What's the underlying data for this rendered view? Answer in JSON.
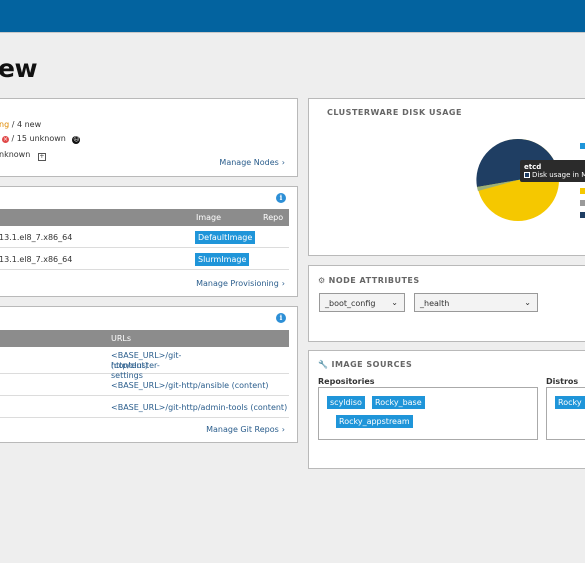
{
  "page": {
    "title": "ew"
  },
  "nodes_card": {
    "line1_warn": "ng",
    "line1_rest": " / 4 new",
    "line2_rest": " / 15 unknown",
    "line3_rest": "nknown",
    "manage_link": "Manage Nodes"
  },
  "provisioning": {
    "headers": {
      "image": "Image",
      "repo": "Repo"
    },
    "rows": [
      {
        "name": "13.1.el8_7.x86_64",
        "image": "DefaultImage"
      },
      {
        "name": "13.1.el8_7.x86_64",
        "image": "SlurmImage"
      }
    ],
    "manage_link": "Manage Provisioning"
  },
  "git_repos": {
    "headers": {
      "urls": "URLs"
    },
    "rows": [
      {
        "url_line1": "<BASE_URL>/git-http/cluster-settings",
        "url_line2": "(content)"
      },
      {
        "url_line1": "<BASE_URL>/git-http/ansible (content)",
        "url_line2": ""
      },
      {
        "url_line1": "<BASE_URL>/git-http/admin-tools (content)",
        "url_line2": ""
      }
    ],
    "manage_link": "Manage Git Repos"
  },
  "disk_usage": {
    "heading": "CLUSTERWARE DISK USAGE",
    "tooltip_title": "etcd",
    "tooltip_text": "Disk usage in MB:",
    "colors": [
      "#1f3e63",
      "#f5c800",
      "#9bb07a",
      "#1f95d9",
      "#9a9a9a"
    ]
  },
  "node_attributes": {
    "heading": "NODE ATTRIBUTES",
    "select1": "_boot_config",
    "select2": "_health"
  },
  "image_sources": {
    "heading": "IMAGE SOURCES",
    "repositories_label": "Repositories",
    "distros_label": "Distros",
    "repos": [
      "scyldiso",
      "Rocky_base",
      "Rocky_appstream"
    ],
    "distros": [
      "Rocky"
    ]
  }
}
